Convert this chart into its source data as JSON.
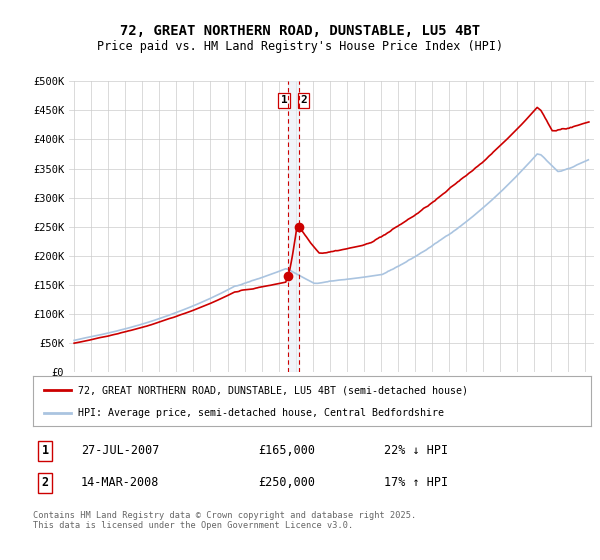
{
  "title_line1": "72, GREAT NORTHERN ROAD, DUNSTABLE, LU5 4BT",
  "title_line2": "Price paid vs. HM Land Registry's House Price Index (HPI)",
  "background_color": "#ffffff",
  "grid_color": "#cccccc",
  "sale1_date": "27-JUL-2007",
  "sale1_price": 165000,
  "sale1_hpi_text": "22% ↓ HPI",
  "sale2_date": "14-MAR-2008",
  "sale2_price": 250000,
  "sale2_hpi_text": "17% ↑ HPI",
  "sale1_year": 2007.57,
  "sale2_year": 2008.21,
  "legend_house": "72, GREAT NORTHERN ROAD, DUNSTABLE, LU5 4BT (semi-detached house)",
  "legend_hpi": "HPI: Average price, semi-detached house, Central Bedfordshire",
  "footnote": "Contains HM Land Registry data © Crown copyright and database right 2025.\nThis data is licensed under the Open Government Licence v3.0.",
  "hpi_color": "#aac4e0",
  "price_color": "#cc0000",
  "vline_color": "#cc0000",
  "vline_fill": "#e8eef5",
  "ylim_max": 500000,
  "ylim_min": 0,
  "xlim_min": 1994.7,
  "xlim_max": 2025.5
}
